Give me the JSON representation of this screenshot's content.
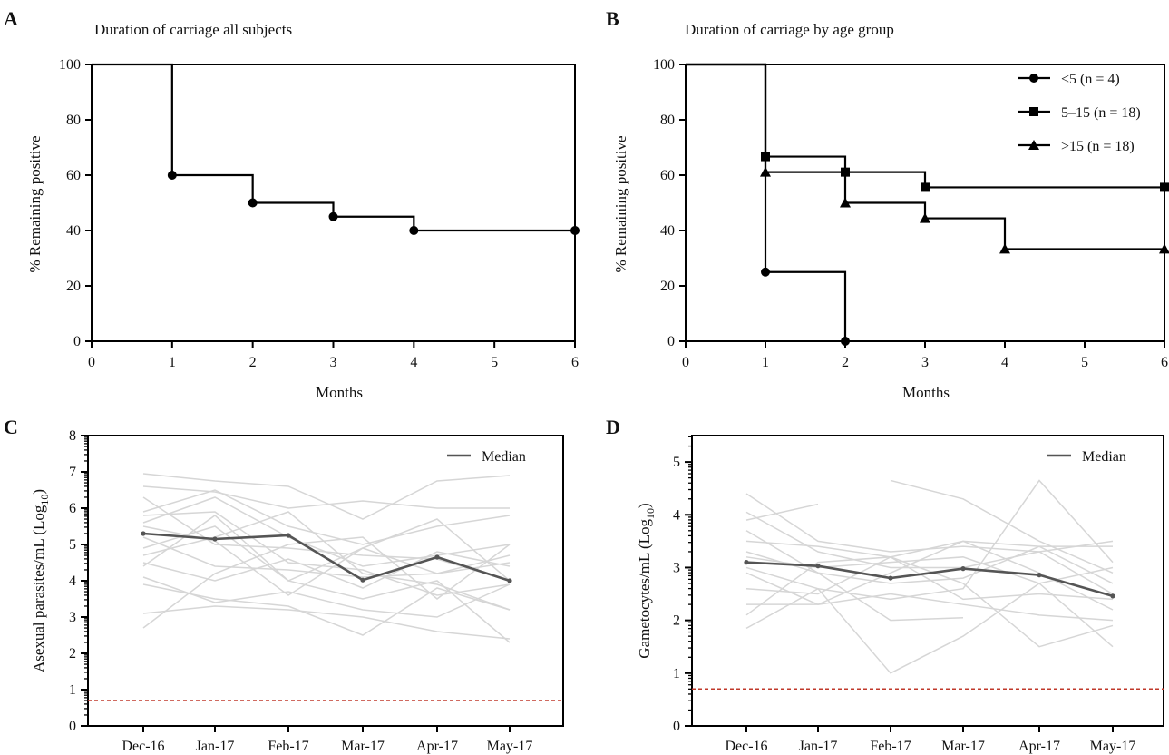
{
  "chart_data": [
    {
      "panel": "A",
      "type": "line",
      "title": "Duration of carriage all subjects",
      "xlabel": "Months",
      "ylabel": "% Remaining positive",
      "xlim": [
        0,
        6
      ],
      "ylim": [
        0,
        100
      ],
      "xticks": [
        "0",
        "1",
        "2",
        "3",
        "4",
        "5",
        "6"
      ],
      "yticks": [
        "0",
        "20",
        "40",
        "60",
        "80",
        "100"
      ],
      "step": true,
      "series": [
        {
          "marker": "circle",
          "x": [
            0,
            1,
            2,
            3,
            4,
            6
          ],
          "y": [
            100,
            60,
            50,
            45,
            40,
            40
          ]
        }
      ]
    },
    {
      "panel": "B",
      "type": "line",
      "title": "Duration of carriage by age group",
      "xlabel": "Months",
      "ylabel": "% Remaining positive",
      "xlim": [
        0,
        6
      ],
      "ylim": [
        0,
        100
      ],
      "xticks": [
        "0",
        "1",
        "2",
        "3",
        "4",
        "5",
        "6"
      ],
      "yticks": [
        "0",
        "20",
        "40",
        "60",
        "80",
        "100"
      ],
      "step": true,
      "legend": "top-right",
      "series": [
        {
          "name": "<5 (n = 4)",
          "marker": "circle",
          "x": [
            0,
            1,
            2
          ],
          "y": [
            100,
            25,
            0
          ]
        },
        {
          "name": "5–15 (n = 18)",
          "marker": "square",
          "x": [
            0,
            1,
            2,
            3,
            6
          ],
          "y": [
            100,
            66.7,
            61.1,
            55.6,
            55.6
          ]
        },
        {
          "name": ">15 (n = 18)",
          "marker": "triangle",
          "x": [
            0,
            1,
            2,
            3,
            4,
            6
          ],
          "y": [
            100,
            61.1,
            50,
            44.4,
            33.3,
            33.3
          ]
        }
      ]
    },
    {
      "panel": "C",
      "type": "line",
      "xlabel": "",
      "ylabel": "Asexual parasites/mL (Log",
      "ylabel_sub": "10",
      "ylabel_close": ")",
      "categories": [
        "Dec-16",
        "Jan-17",
        "Feb-17",
        "Mar-17",
        "Apr-17",
        "May-17"
      ],
      "ylim": [
        0,
        8
      ],
      "yticks": [
        "0",
        "1",
        "2",
        "3",
        "4",
        "5",
        "6",
        "7",
        "8"
      ],
      "legend": "top-right",
      "threshold": 0.7,
      "colors": {
        "individual": "#d6d6d6",
        "median": "#555555",
        "threshold": "#c0392b"
      },
      "median": {
        "name": "Median",
        "values": [
          5.3,
          5.15,
          5.25,
          4.02,
          4.65,
          4.0
        ]
      },
      "individual_series": [
        [
          6.95,
          6.75,
          6.6,
          5.7,
          6.75,
          6.9
        ],
        [
          6.6,
          6.45,
          6.0,
          6.2,
          6.0,
          6.0
        ],
        [
          6.3,
          5.0,
          4.9,
          4.7,
          4.6,
          4.0
        ],
        [
          5.9,
          6.5,
          5.5,
          5.0,
          5.5,
          5.8
        ],
        [
          5.8,
          5.9,
          4.5,
          4.3,
          3.6,
          3.9
        ],
        [
          5.6,
          6.3,
          5.2,
          4.4,
          4.7,
          5.0
        ],
        [
          5.2,
          4.4,
          4.3,
          4.1,
          4.2,
          4.7
        ],
        [
          4.9,
          5.5,
          4.0,
          4.9,
          5.7,
          4.0
        ],
        [
          4.7,
          5.2,
          5.9,
          4.2,
          3.9,
          3.2
        ],
        [
          4.5,
          4.0,
          4.6,
          3.8,
          4.8,
          4.4
        ],
        [
          4.4,
          5.8,
          4.0,
          3.5,
          4.0,
          2.3
        ],
        [
          4.1,
          3.4,
          3.7,
          3.2,
          3.0,
          3.9
        ],
        [
          3.9,
          3.5,
          3.3,
          2.5,
          3.8,
          3.2
        ],
        [
          3.1,
          3.3,
          3.2,
          3.0,
          2.6,
          2.4
        ],
        [
          2.7,
          4.2,
          5.0,
          5.2,
          3.5,
          5.0
        ],
        [
          5.5,
          5.1,
          3.6,
          4.9,
          4.2,
          4.5
        ]
      ]
    },
    {
      "panel": "D",
      "type": "line",
      "xlabel": "",
      "ylabel": "Gametocytes/mL (Log",
      "ylabel_sub": "10",
      "ylabel_close": ")",
      "categories": [
        "Dec-16",
        "Jan-17",
        "Feb-17",
        "Mar-17",
        "Apr-17",
        "May-17"
      ],
      "ylim": [
        0,
        5.5
      ],
      "yticks": [
        "0",
        "1",
        "2",
        "3",
        "4",
        "5"
      ],
      "legend": "top-right",
      "threshold": 0.7,
      "colors": {
        "individual": "#d6d6d6",
        "median": "#555555",
        "threshold": "#c0392b"
      },
      "median": {
        "name": "Median",
        "values": [
          3.1,
          3.03,
          2.8,
          2.98,
          2.86,
          2.46
        ]
      },
      "individual_series": [
        [
          4.4,
          3.5,
          3.3,
          3.4,
          3.3,
          3.5
        ],
        [
          4.05,
          3.3,
          3.0,
          3.0,
          3.3,
          2.5
        ],
        [
          3.9,
          4.2,
          null,
          null,
          null,
          null
        ],
        [
          3.7,
          2.9,
          2.0,
          2.05,
          null,
          null
        ],
        [
          3.5,
          3.4,
          3.2,
          3.5,
          3.4,
          3.4
        ],
        [
          3.3,
          2.9,
          2.7,
          2.8,
          3.4,
          2.7
        ],
        [
          3.2,
          3.0,
          3.1,
          3.2,
          2.7,
          3.0
        ],
        [
          3.0,
          2.6,
          1.0,
          1.7,
          2.7,
          1.5
        ],
        [
          2.9,
          2.3,
          2.5,
          2.3,
          2.1,
          2.0
        ],
        [
          2.6,
          2.5,
          3.2,
          2.4,
          2.5,
          2.4
        ],
        [
          2.3,
          2.3,
          2.9,
          3.5,
          2.9,
          2.2
        ],
        [
          2.1,
          3.1,
          3.2,
          2.7,
          1.5,
          1.9
        ],
        [
          1.85,
          2.6,
          2.4,
          2.6,
          4.65,
          3.1
        ],
        [
          null,
          null,
          4.65,
          4.3,
          3.5,
          2.9
        ]
      ]
    }
  ]
}
